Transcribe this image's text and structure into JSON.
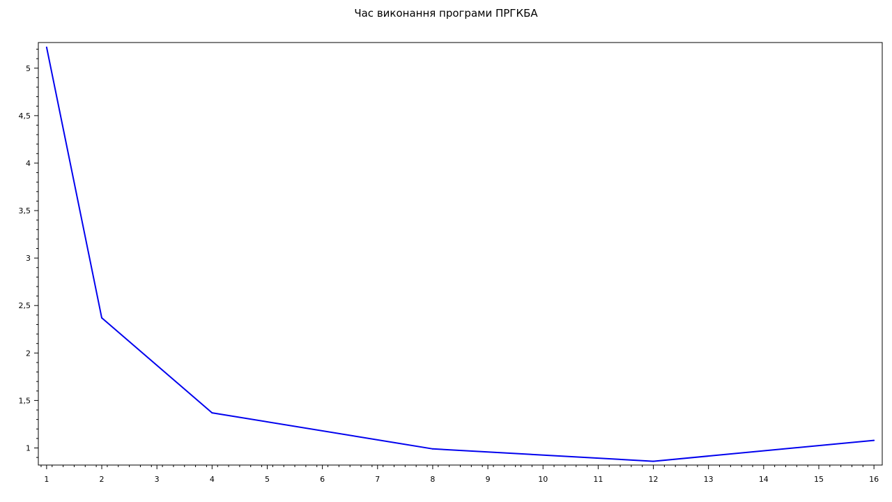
{
  "chart_data": {
    "type": "line",
    "title": "Час виконання програми ПРГКБА",
    "xlabel": "",
    "ylabel": "",
    "xlim": [
      0.85,
      16.15
    ],
    "ylim": [
      0.82,
      5.27
    ],
    "grid": false,
    "x_ticks": [
      1,
      2,
      3,
      4,
      5,
      6,
      7,
      8,
      9,
      10,
      11,
      12,
      13,
      14,
      15,
      16
    ],
    "x_tick_labels": [
      "1",
      "2",
      "3",
      "4",
      "5",
      "6",
      "7",
      "8",
      "9",
      "10",
      "11",
      "12",
      "13",
      "14",
      "15",
      "16"
    ],
    "y_ticks": [
      1,
      1.5,
      2,
      2.5,
      3,
      3.5,
      4,
      4.5,
      5
    ],
    "y_tick_labels": [
      "1",
      "1,5",
      "2",
      "2,5",
      "3",
      "3,5",
      "4",
      "4,5",
      "5"
    ],
    "series": [
      {
        "color": "#0000ee",
        "x": [
          1,
          2,
          4,
          8,
          12,
          16
        ],
        "y": [
          5.22,
          2.37,
          1.37,
          0.99,
          0.86,
          1.08
        ]
      }
    ]
  }
}
